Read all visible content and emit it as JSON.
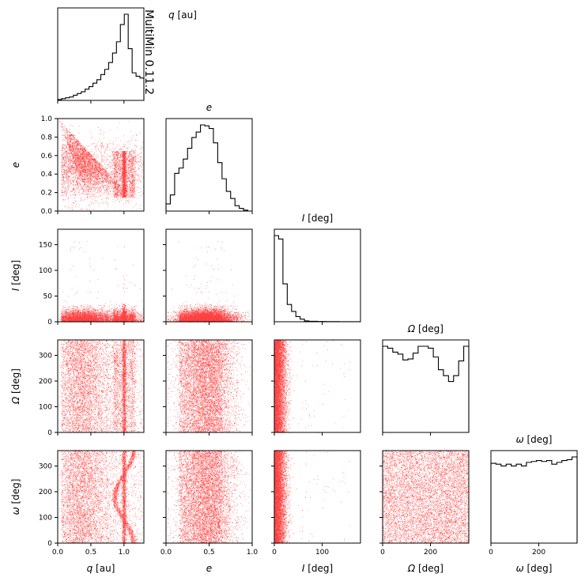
{
  "watermark": "MultiMin 0.11.2",
  "colors": {
    "scatter": "#ff0000",
    "hist": "#000000",
    "watermark": "#ffb6c1",
    "axes": "#000000"
  },
  "variables": [
    {
      "key": "q",
      "sym": "q",
      "unit": "[au]",
      "range": [
        0,
        1.3
      ],
      "ticks": [
        0.0,
        0.5,
        1.0
      ],
      "tick_labels": [
        "0.0",
        "0.5",
        "1.0"
      ]
    },
    {
      "key": "e",
      "sym": "e",
      "unit": "",
      "range": [
        0,
        1.0
      ],
      "ticks": [
        0.0,
        0.2,
        0.4,
        0.6,
        0.8,
        1.0
      ],
      "tick_labels": [
        "0.0",
        "0.2",
        "0.4",
        "0.6",
        "0.8",
        "1.0"
      ],
      "x_ticks": [
        0.0,
        0.5,
        1.0
      ],
      "x_tick_labels": [
        "0.0",
        "0.5",
        "1.0"
      ]
    },
    {
      "key": "I",
      "sym": "I",
      "unit": "[deg]",
      "range": [
        0,
        180
      ],
      "ticks": [
        0,
        50,
        100,
        150
      ],
      "tick_labels": [
        "0",
        "50",
        "100",
        "150"
      ],
      "x_ticks": [
        0,
        100
      ],
      "x_tick_labels": [
        "0",
        "100"
      ]
    },
    {
      "key": "Omega",
      "sym": "Ω",
      "unit": "[deg]",
      "range": [
        0,
        360
      ],
      "ticks": [
        0,
        100,
        200,
        300
      ],
      "tick_labels": [
        "0",
        "100",
        "200",
        "300"
      ],
      "x_ticks": [
        0,
        200
      ],
      "x_tick_labels": [
        "0",
        "200"
      ]
    },
    {
      "key": "omega",
      "sym": "ω",
      "unit": "[deg]",
      "range": [
        0,
        360
      ],
      "ticks": [
        0,
        100,
        200,
        300
      ],
      "tick_labels": [
        "0",
        "100",
        "200",
        "300"
      ],
      "x_ticks": [
        0,
        200
      ],
      "x_tick_labels": [
        "0",
        "200"
      ]
    }
  ],
  "chart_data": {
    "type": "scatter",
    "layout": "corner-plot",
    "histograms": {
      "q": {
        "range": [
          0,
          1.3
        ],
        "counts": [
          1,
          2,
          3,
          4,
          6,
          8,
          10,
          13,
          16,
          20,
          24,
          30,
          36,
          44,
          55,
          68,
          88,
          100,
          60,
          32,
          28,
          26
        ]
      },
      "e": {
        "range": [
          0,
          1.0
        ],
        "counts": [
          8,
          18,
          42,
          48,
          58,
          70,
          82,
          88,
          96,
          95,
          92,
          76,
          54,
          36,
          22,
          14,
          6,
          3,
          1,
          0
        ]
      },
      "I": {
        "range": [
          0,
          180
        ],
        "counts": [
          100,
          96,
          44,
          20,
          12,
          6,
          3,
          1,
          0.5,
          0.5,
          0.3,
          0.3,
          0.2,
          0.2,
          0.2,
          0.1,
          0.1,
          0.1,
          0.1,
          0.1
        ]
      },
      "Omega": {
        "range": [
          0,
          360
        ],
        "counts": [
          88,
          86,
          82,
          80,
          74,
          75,
          81,
          88,
          88,
          86,
          77,
          64,
          58,
          52,
          58,
          73,
          88
        ]
      },
      "omega": {
        "range": [
          0,
          360
        ],
        "counts": [
          88,
          87,
          85,
          87,
          85,
          87,
          85,
          89,
          90,
          91,
          90,
          91,
          87,
          89,
          91,
          92,
          95
        ]
      }
    },
    "scatter_structure": {
      "q_e": "points lie below the curve e = 1 - 0.77 q for q < 1, dense vertical band at q ≈ 1 with e between 0.15 and 0.65",
      "q_I": "I concentrated below ~30 deg, denser near q ≈ 1",
      "q_Omega": "uniform in Omega, dense vertical band at q ≈ 1",
      "q_omega": "C-shaped curve: q_min ≈ 0.85 at omega ≈ 180, with dense band at q ≈ 1",
      "e_I": "I below ~30 deg, peak near e ≈ 0.5",
      "e_Omega": "uniform in Omega, e centered ≈ 0.5",
      "e_omega": "uniform in omega, e centered ≈ 0.5",
      "I_Omega": "I concentrated below ~25 deg, uniform Omega",
      "I_omega": "I concentrated below ~25 deg, uniform omega",
      "Omega_omega": "uniform square"
    }
  }
}
